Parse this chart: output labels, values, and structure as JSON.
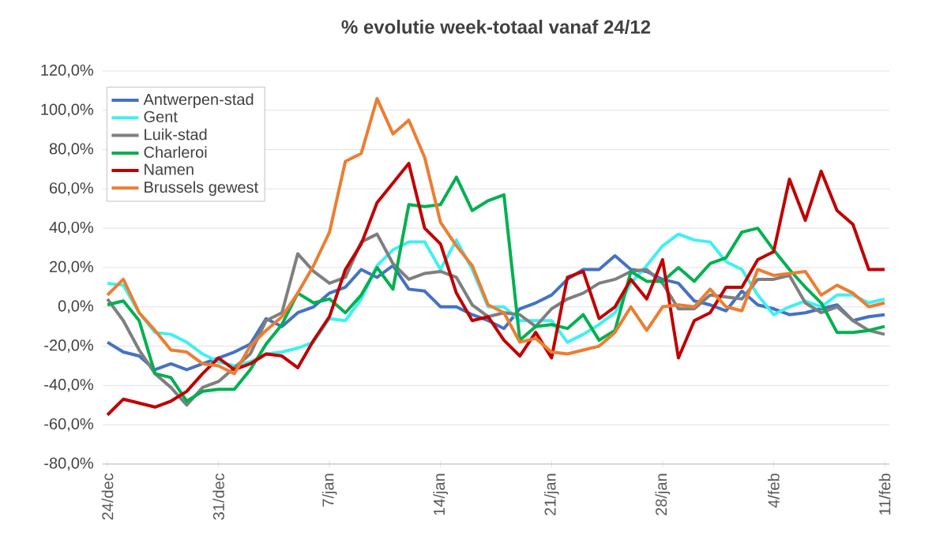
{
  "chart_data": {
    "type": "line",
    "title": "% evolutie week-totaal  vanaf 24/12",
    "categories": [
      "24/dec",
      null,
      null,
      null,
      null,
      null,
      null,
      "31/dec",
      null,
      null,
      null,
      null,
      null,
      null,
      "7/jan",
      null,
      null,
      null,
      null,
      null,
      null,
      "14/jan",
      null,
      null,
      null,
      null,
      null,
      null,
      "21/jan",
      null,
      null,
      null,
      null,
      null,
      null,
      "28/jan",
      null,
      null,
      null,
      null,
      null,
      null,
      "4/feb",
      null,
      null,
      null,
      null,
      null,
      null,
      "11/feb"
    ],
    "series": [
      {
        "name": "Antwerpen-stad",
        "color": "#4472c4",
        "values": [
          -18,
          -23,
          -25,
          -32,
          -29,
          -32,
          -29,
          -26,
          -23,
          -19,
          -6,
          -10,
          -3,
          0,
          7,
          10,
          19,
          15,
          21,
          9,
          8,
          0,
          0,
          -4,
          -7,
          -11,
          -1,
          2,
          6,
          14,
          19,
          19,
          26,
          19,
          18,
          14,
          12,
          3,
          1,
          -2,
          8,
          1,
          -1,
          -4,
          -3,
          -1,
          1,
          -7,
          -5,
          -4
        ]
      },
      {
        "name": "Gent",
        "color": "#40f0f0",
        "values": [
          12,
          11,
          -3,
          -13,
          -14,
          -18,
          -24,
          -28,
          -30,
          -28,
          -24,
          -23,
          -21,
          -18,
          -6,
          -7,
          4,
          21,
          29,
          33,
          33,
          19,
          34,
          19,
          0,
          0,
          -7,
          -7,
          -7,
          -18,
          -14,
          -9,
          -3,
          12,
          21,
          31,
          37,
          34,
          33,
          23,
          19,
          6,
          -4,
          0,
          3,
          0,
          6,
          6,
          2,
          4
        ]
      },
      {
        "name": "Luik-stad",
        "color": "#7f7f7f",
        "values": [
          4,
          -7,
          -22,
          -34,
          -41,
          -50,
          -41,
          -38,
          -31,
          -24,
          -7,
          -3,
          27,
          18,
          12,
          15,
          33,
          37,
          22,
          14,
          17,
          18,
          15,
          1,
          -5,
          -3,
          -4,
          -10,
          -1,
          4,
          7,
          12,
          14,
          18,
          19,
          12,
          -1,
          -1,
          6,
          5,
          4,
          14,
          14,
          16,
          2,
          -3,
          0,
          -7,
          -12,
          -14
        ]
      },
      {
        "name": "Charleroi",
        "color": "#00b050",
        "values": [
          1,
          3,
          -7,
          -34,
          -36,
          -48,
          -43,
          -42,
          -42,
          -32,
          -19,
          -9,
          7,
          2,
          4,
          -3,
          6,
          20,
          9,
          52,
          51,
          52,
          66,
          49,
          54,
          57,
          -17,
          -10,
          -9,
          -11,
          -4,
          -17,
          -12,
          18,
          13,
          13,
          20,
          13,
          22,
          25,
          38,
          40,
          29,
          19,
          10,
          2,
          -13,
          -13,
          -12,
          -10
        ]
      },
      {
        "name": "Namen",
        "color": "#c00000",
        "values": [
          -55,
          -47,
          -49,
          -51,
          -48,
          -43,
          -34,
          -26,
          -32,
          -29,
          -24,
          -25,
          -31,
          -17,
          -5,
          19,
          32,
          53,
          63,
          73,
          40,
          32,
          7,
          -7,
          -5,
          -17,
          -25,
          -13,
          -26,
          15,
          18,
          -6,
          0,
          14,
          4,
          24,
          -26,
          -7,
          -3,
          10,
          10,
          24,
          28,
          65,
          44,
          69,
          49,
          42,
          19,
          19
        ]
      },
      {
        "name": "Brussels gewest",
        "color": "#ed7d31",
        "values": [
          6,
          14,
          -3,
          -12,
          -22,
          -23,
          -29,
          -30,
          -34,
          -20,
          -12,
          -5,
          7,
          21,
          38,
          74,
          78,
          106,
          88,
          95,
          76,
          43,
          31,
          21,
          1,
          -3,
          -18,
          -16,
          -23,
          -24,
          -22,
          -20,
          -13,
          0,
          -12,
          0,
          1,
          0,
          9,
          0,
          -2,
          19,
          16,
          17,
          18,
          6,
          11,
          7,
          0,
          2
        ]
      }
    ],
    "ylim": [
      -80,
      120
    ],
    "yticks": [
      {
        "value": -80,
        "label": "-80,0%"
      },
      {
        "value": -60,
        "label": "-60,0%"
      },
      {
        "value": -40,
        "label": "-40,0%"
      },
      {
        "value": -20,
        "label": "-20,0%"
      },
      {
        "value": 0,
        "label": "0,0%"
      },
      {
        "value": 20,
        "label": "20,0%"
      },
      {
        "value": 40,
        "label": "40,0%"
      },
      {
        "value": 60,
        "label": "60,0%"
      },
      {
        "value": 80,
        "label": "80,0%"
      },
      {
        "value": 100,
        "label": "100,0%"
      },
      {
        "value": 120,
        "label": "120,0%"
      }
    ],
    "grid": "y",
    "legend": "top left",
    "marker": "none",
    "line_style": "solid"
  }
}
